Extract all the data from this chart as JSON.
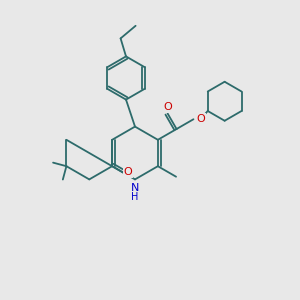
{
  "background_color": "#e8e8e8",
  "bond_color": "#2d6b6b",
  "atom_colors": {
    "O": "#cc0000",
    "N": "#0000cc",
    "C": "#2d6b6b",
    "H": "#2d6b6b"
  },
  "line_width": 1.3,
  "figsize": [
    3.0,
    3.0
  ],
  "dpi": 100
}
